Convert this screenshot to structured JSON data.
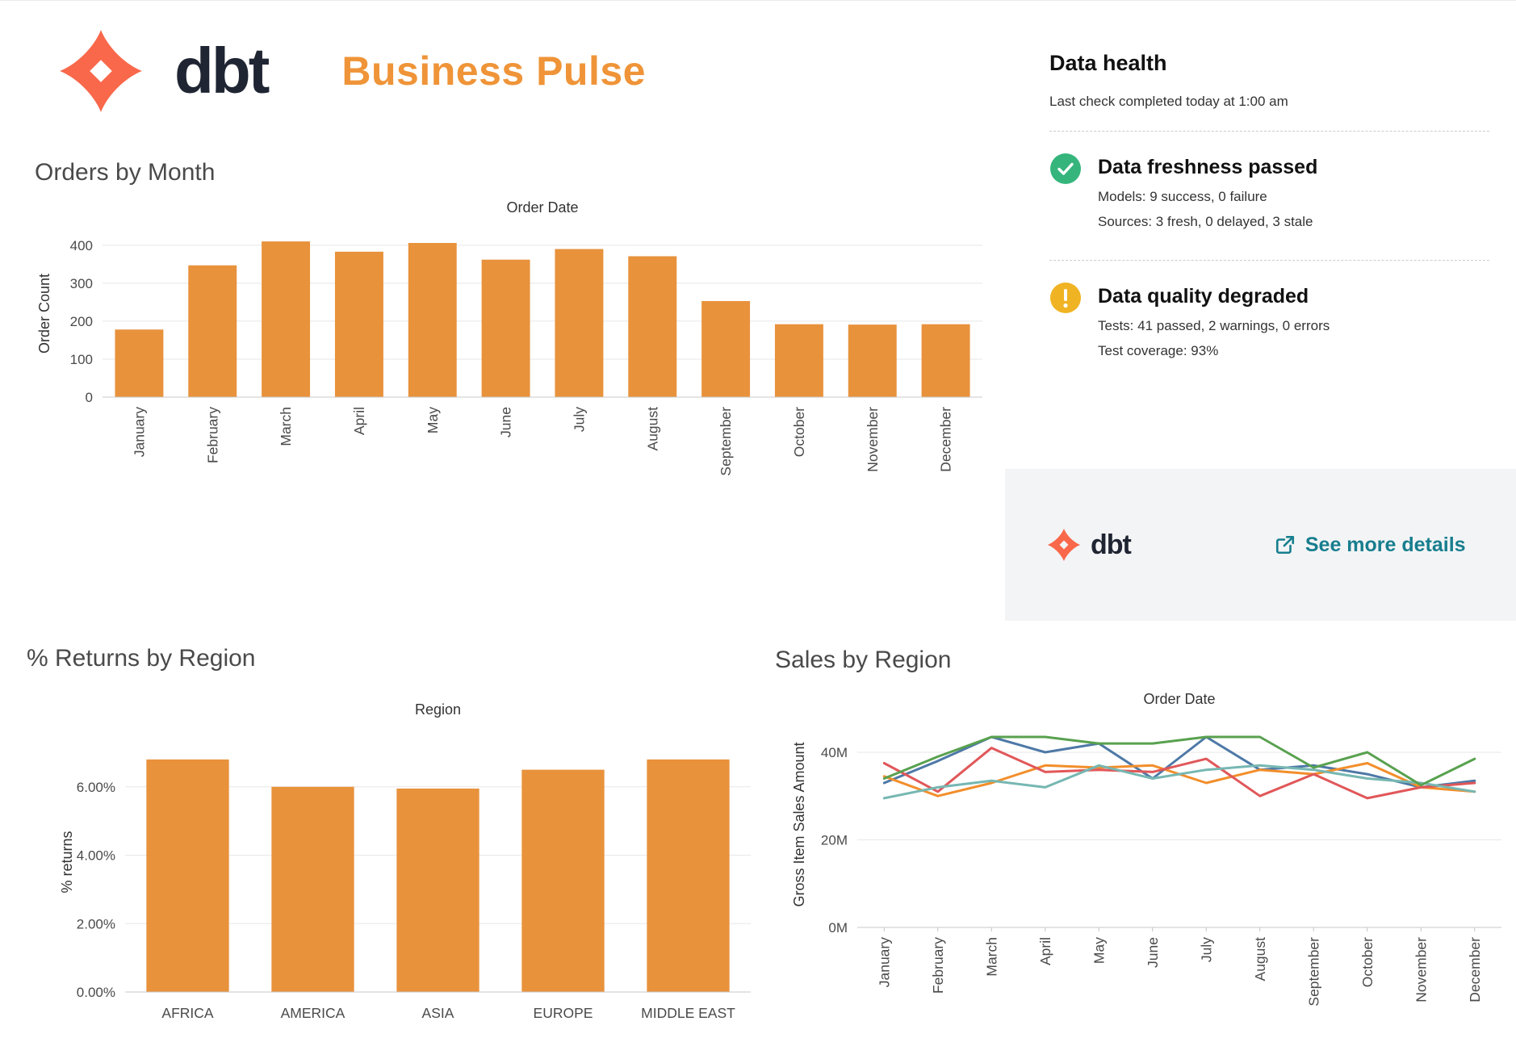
{
  "header": {
    "brand": "dbt",
    "title": "Business Pulse"
  },
  "colors": {
    "logo_orange": "#F9684B",
    "title_orange": "#EF9438",
    "bar_orange": "#E8923C",
    "teal": "#177E8E",
    "success_green": "#35B57C",
    "warning_yellow": "#F0B323"
  },
  "data_health": {
    "title": "Data health",
    "last_check": "Last check completed today at 1:00 am",
    "freshness": {
      "title": "Data freshness passed",
      "models": "Models: 9 success, 0 failure",
      "sources": "Sources: 3 fresh, 0 delayed, 3 stale"
    },
    "quality": {
      "title": "Data quality degraded",
      "tests": "Tests: 41 passed, 2 warnings, 0 errors",
      "coverage": "Test coverage: 93%"
    },
    "footer": {
      "brand": "dbt",
      "link": "See more details"
    }
  },
  "chart_data": [
    {
      "id": "orders",
      "type": "bar",
      "title": "Orders by Month",
      "inner_title": "Order Date",
      "ylabel": "Order Count",
      "categories": [
        "January",
        "February",
        "March",
        "April",
        "May",
        "June",
        "July",
        "August",
        "September",
        "October",
        "November",
        "December"
      ],
      "values": [
        178,
        347,
        410,
        383,
        406,
        362,
        390,
        371,
        253,
        192,
        191,
        192
      ],
      "ylim": [
        0,
        440
      ],
      "yticks": [
        0,
        100,
        200,
        300,
        400
      ],
      "ytick_labels": [
        "0",
        "100",
        "200",
        "300",
        "400"
      ],
      "bar_color": "#E8923C",
      "grid": true,
      "x_label_rotate": true,
      "legend": "none"
    },
    {
      "id": "returns",
      "type": "bar",
      "title": "% Returns by Region",
      "inner_title": "Region",
      "ylabel": "% returns",
      "categories": [
        "AFRICA",
        "AMERICA",
        "ASIA",
        "EUROPE",
        "MIDDLE EAST"
      ],
      "values": [
        6.8,
        6.0,
        5.95,
        6.5,
        6.8
      ],
      "unit": "%",
      "ylim": [
        0,
        7.6
      ],
      "yticks": [
        0,
        2,
        4,
        6
      ],
      "ytick_labels": [
        "0.00%",
        "2.00%",
        "4.00%",
        "6.00%"
      ],
      "bar_color": "#E8923C",
      "grid": true,
      "x_label_rotate": false,
      "legend": "none"
    },
    {
      "id": "sales",
      "type": "line",
      "title": "Sales by Region",
      "inner_title": "Order Date",
      "ylabel": "Gross Item Sales Amount",
      "unit": "M",
      "categories": [
        "January",
        "February",
        "March",
        "April",
        "May",
        "June",
        "July",
        "August",
        "September",
        "October",
        "November",
        "December"
      ],
      "series": [
        {
          "name": "series-blue",
          "color": "#4E79A7",
          "values": [
            33.0,
            38.0,
            43.5,
            40.0,
            42.0,
            34.0,
            43.5,
            36.0,
            37.0,
            35.0,
            32.0,
            33.5
          ]
        },
        {
          "name": "series-orange",
          "color": "#F28E2B",
          "values": [
            34.5,
            30.0,
            33.0,
            37.0,
            36.5,
            37.0,
            33.0,
            36.0,
            35.0,
            37.5,
            32.0,
            31.0
          ]
        },
        {
          "name": "series-red",
          "color": "#E15759",
          "values": [
            37.5,
            31.0,
            41.0,
            35.5,
            36.0,
            35.5,
            38.5,
            30.0,
            35.0,
            29.5,
            32.0,
            33.0
          ]
        },
        {
          "name": "series-teal",
          "color": "#76B7B2",
          "values": [
            29.5,
            32.0,
            33.5,
            32.0,
            37.0,
            34.0,
            36.0,
            37.0,
            36.0,
            34.0,
            33.0,
            31.0
          ]
        },
        {
          "name": "series-green",
          "color": "#59A14F",
          "values": [
            34.0,
            39.0,
            43.5,
            43.5,
            42.0,
            42.0,
            43.5,
            43.5,
            36.5,
            40.0,
            32.5,
            38.5
          ]
        }
      ],
      "ylim": [
        0,
        47
      ],
      "yticks": [
        0,
        20,
        40
      ],
      "ytick_labels": [
        "0M",
        "20M",
        "40M"
      ],
      "grid": true,
      "x_label_rotate": true,
      "legend": "none"
    }
  ]
}
